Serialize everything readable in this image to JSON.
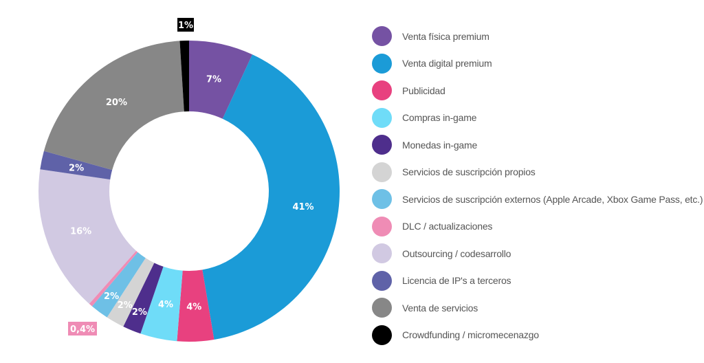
{
  "chart_data": {
    "type": "pie",
    "variant": "donut",
    "title": "",
    "start": "top",
    "direction": "clockwise",
    "legend_position": "right",
    "slices": [
      {
        "name": "Venta física premium",
        "value": 7,
        "label": "7%",
        "color": "#7552a3"
      },
      {
        "name": "Venta digital premium",
        "value": 41,
        "label": "41%",
        "color": "#1b9bd7"
      },
      {
        "name": "Publicidad",
        "value": 4,
        "label": "4%",
        "color": "#e8417f"
      },
      {
        "name": "Compras in-game",
        "value": 4,
        "label": "4%",
        "color": "#6fdcf8"
      },
      {
        "name": "Monedas in-game",
        "value": 2,
        "label": "2%",
        "color": "#4e2e8c"
      },
      {
        "name": "Servicios de suscripción propios",
        "value": 2,
        "label": "2%",
        "color": "#d4d4d4"
      },
      {
        "name": "Servicios de suscripción externos (Apple Arcade, Xbox Game Pass, etc.) (%)",
        "value": 2,
        "label": "2%",
        "color": "#6ec0e6"
      },
      {
        "name": "DLC / actualizaciones",
        "value": 0.4,
        "label": "0,4%",
        "color": "#ef8cb5",
        "label_outside": true
      },
      {
        "name": "Outsourcing / codesarrollo",
        "value": 16,
        "label": "16%",
        "color": "#d1c9e2"
      },
      {
        "name": "Licencia de IP's a terceros",
        "value": 2,
        "label": "2%",
        "color": "#5f62a8"
      },
      {
        "name": "Venta de servicios",
        "value": 20,
        "label": "20%",
        "color": "#878787"
      },
      {
        "name": "Crowdfunding / micromecenazgo",
        "value": 1,
        "label": "1%",
        "color": "#000000",
        "label_outside": true
      }
    ]
  }
}
